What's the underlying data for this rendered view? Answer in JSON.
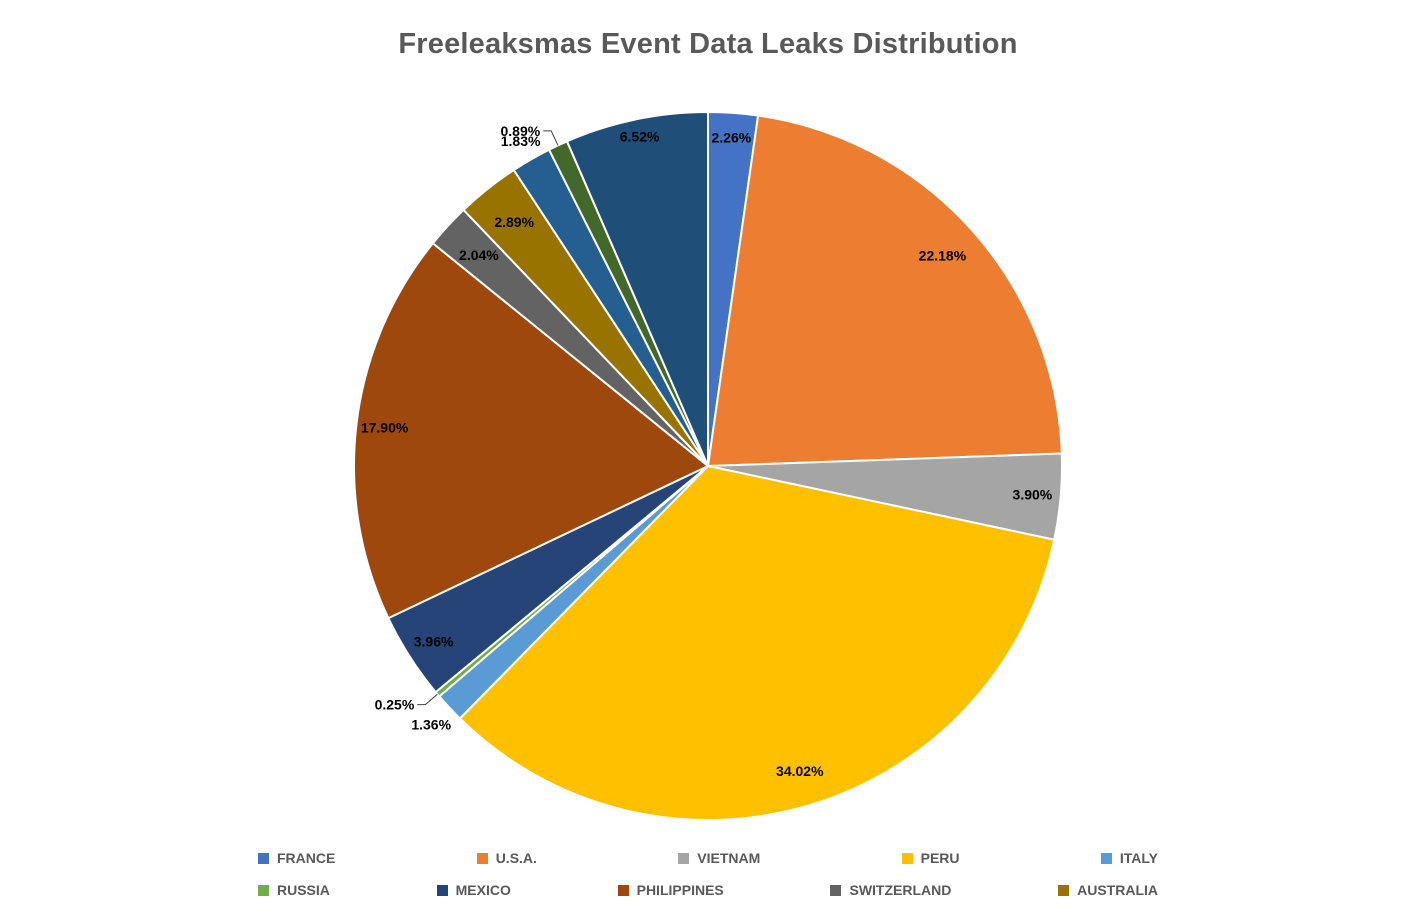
{
  "chart_data": {
    "type": "pie",
    "title": "Freeleaksmas Event Data Leaks Distribution",
    "title_color": "#595959",
    "background_color": "#FFFFFF",
    "slice_border_color": "#FFFFFF",
    "data_label_color": "#000000",
    "legend_text_color": "#595959",
    "legend_position": "bottom",
    "start_angle_deg": 0,
    "clockwise": true,
    "total": 100,
    "slices": [
      {
        "name": "FRANCE",
        "value": 2.26,
        "label": "2.26%",
        "color": "#4472C4",
        "placement": "inside",
        "label_r": 0.93
      },
      {
        "name": "U.S.A.",
        "value": 22.18,
        "label": "22.18%",
        "color": "#ED7D31",
        "placement": "inside",
        "label_r": 0.89
      },
      {
        "name": "VIETNAM",
        "value": 3.9,
        "label": "3.90%",
        "color": "#A5A5A5",
        "placement": "inside",
        "label_r": 0.92
      },
      {
        "name": "PERU",
        "value": 34.02,
        "label": "34.02%",
        "color": "#FFC000",
        "placement": "inside",
        "label_r": 0.9
      },
      {
        "name": "ITALY",
        "value": 1.36,
        "label": "1.36%",
        "color": "#5B9BD5",
        "placement": "outside",
        "label_r": 1.07
      },
      {
        "name": "RUSSIA",
        "value": 0.25,
        "label": "0.25%",
        "color": "#70AD47",
        "placement": "outside-leader",
        "label_r": 1.045
      },
      {
        "name": "MEXICO",
        "value": 3.96,
        "label": "3.96%",
        "color": "#264478",
        "placement": "inside",
        "label_r": 0.92
      },
      {
        "name": "PHILIPPINES",
        "value": 17.9,
        "label": "17.90%",
        "color": "#9E480E",
        "placement": "inside",
        "label_r": 0.92
      },
      {
        "name": "SWITZERLAND",
        "value": 2.04,
        "label": "2.04%",
        "color": "#636363",
        "placement": "inside",
        "label_r": 0.88
      },
      {
        "name": "AUSTRALIA",
        "value": 2.89,
        "label": "2.89%",
        "color": "#997300",
        "placement": "inside",
        "label_r": 0.88
      },
      {
        "name": "",
        "value": 1.83,
        "label": "1.83%",
        "color": "#255E91",
        "placement": "outside",
        "label_r": 1.06
      },
      {
        "name": "",
        "value": 0.89,
        "label": "0.89%",
        "color": "#43682B",
        "placement": "outside-leader",
        "label_r": 1.045
      },
      {
        "name": "",
        "value": 6.52,
        "label": "6.52%",
        "color": "#1F4E79",
        "placement": "inside",
        "label_r": 0.95
      }
    ],
    "legend_entries": [
      "FRANCE",
      "U.S.A.",
      "VIETNAM",
      "PERU",
      "ITALY",
      "RUSSIA",
      "MEXICO",
      "PHILIPPINES",
      "SWITZERLAND",
      "AUSTRALIA"
    ]
  }
}
